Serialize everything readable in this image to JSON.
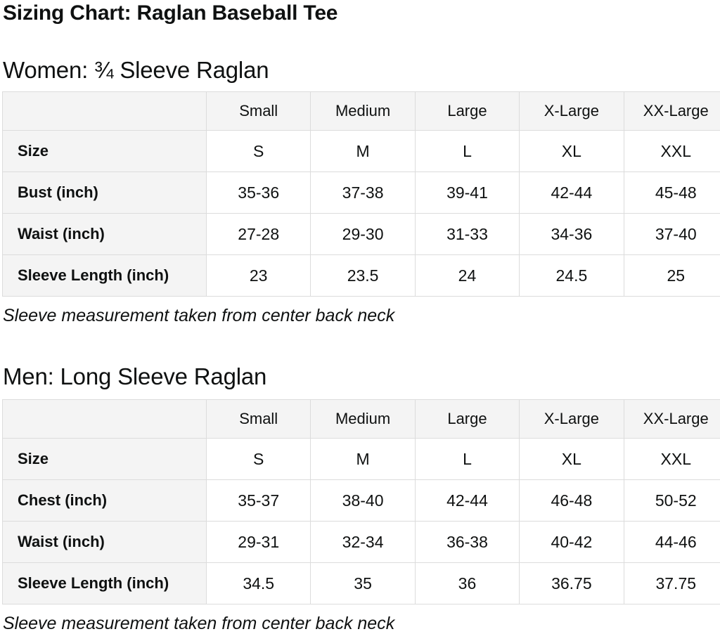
{
  "page": {
    "title": "Sizing Chart: Raglan Baseball Tee"
  },
  "colors": {
    "text": "#0f1111",
    "header_bg": "#f4f4f4",
    "border": "#dcdcdc"
  },
  "sections": [
    {
      "heading": "Women: ¾ Sleeve Raglan",
      "note": "Sleeve measurement taken from center back neck",
      "table": {
        "column_headers": [
          "",
          "Small",
          "Medium",
          "Large",
          "X-Large",
          "XX-Large"
        ],
        "rows": [
          {
            "label": "Size",
            "values": [
              "S",
              "M",
              "L",
              "XL",
              "XXL"
            ]
          },
          {
            "label": "Bust (inch)",
            "values": [
              "35-36",
              "37-38",
              "39-41",
              "42-44",
              "45-48"
            ]
          },
          {
            "label": "Waist (inch)",
            "values": [
              "27-28",
              "29-30",
              "31-33",
              "34-36",
              "37-40"
            ]
          },
          {
            "label": "Sleeve Length (inch)",
            "values": [
              "23",
              "23.5",
              "24",
              "24.5",
              "25"
            ]
          }
        ]
      }
    },
    {
      "heading": "Men: Long Sleeve Raglan",
      "note": "Sleeve measurement taken from center back neck",
      "table": {
        "column_headers": [
          "",
          "Small",
          "Medium",
          "Large",
          "X-Large",
          "XX-Large"
        ],
        "rows": [
          {
            "label": "Size",
            "values": [
              "S",
              "M",
              "L",
              "XL",
              "XXL"
            ]
          },
          {
            "label": "Chest (inch)",
            "values": [
              "35-37",
              "38-40",
              "42-44",
              "46-48",
              "50-52"
            ]
          },
          {
            "label": "Waist (inch)",
            "values": [
              "29-31",
              "32-34",
              "36-38",
              "40-42",
              "44-46"
            ]
          },
          {
            "label": "Sleeve Length (inch)",
            "values": [
              "34.5",
              "35",
              "36",
              "36.75",
              "37.75"
            ]
          }
        ]
      }
    }
  ]
}
